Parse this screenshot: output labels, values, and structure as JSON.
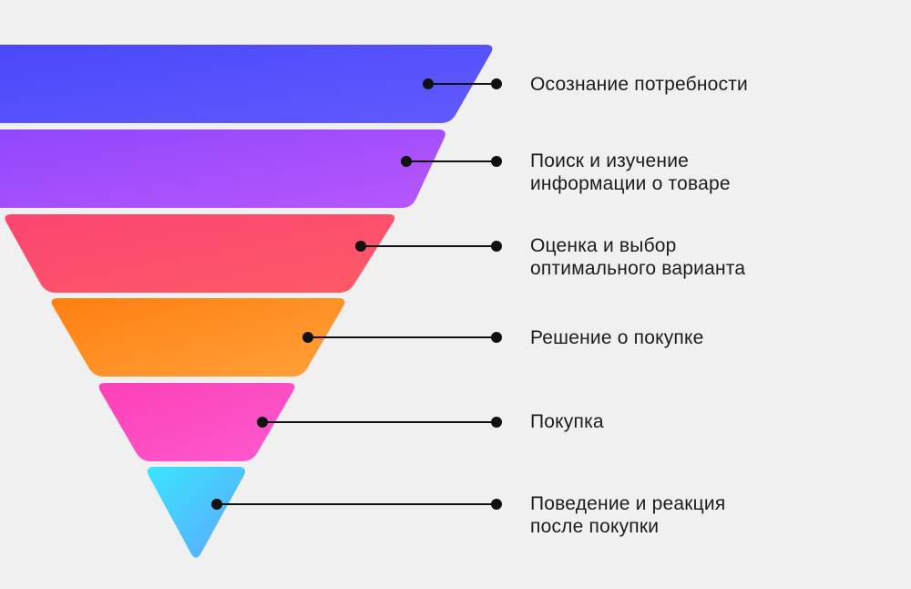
{
  "stages": [
    {
      "lines": [
        "Осознание потребности"
      ],
      "color_start": "#4a48fb",
      "color_end": "#625afc"
    },
    {
      "lines": [
        "Поиск и изучение",
        "информации о товаре"
      ],
      "color_start": "#8f47fb",
      "color_end": "#b857fd"
    },
    {
      "lines": [
        "Оценка и выбор",
        "оптимального варианта"
      ],
      "color_start": "#fb4571",
      "color_end": "#fd5a66"
    },
    {
      "lines": [
        "Решение о покупке"
      ],
      "color_start": "#ff7f11",
      "color_end": "#ffa13a"
    },
    {
      "lines": [
        "Покупка"
      ],
      "color_start": "#fd40b6",
      "color_end": "#fd5ad0"
    },
    {
      "lines": [
        "Поведение и реакция",
        "после покупки"
      ],
      "color_start": "#39e4fd",
      "color_end": "#5ea6fd"
    }
  ],
  "connector_color": "#111111"
}
